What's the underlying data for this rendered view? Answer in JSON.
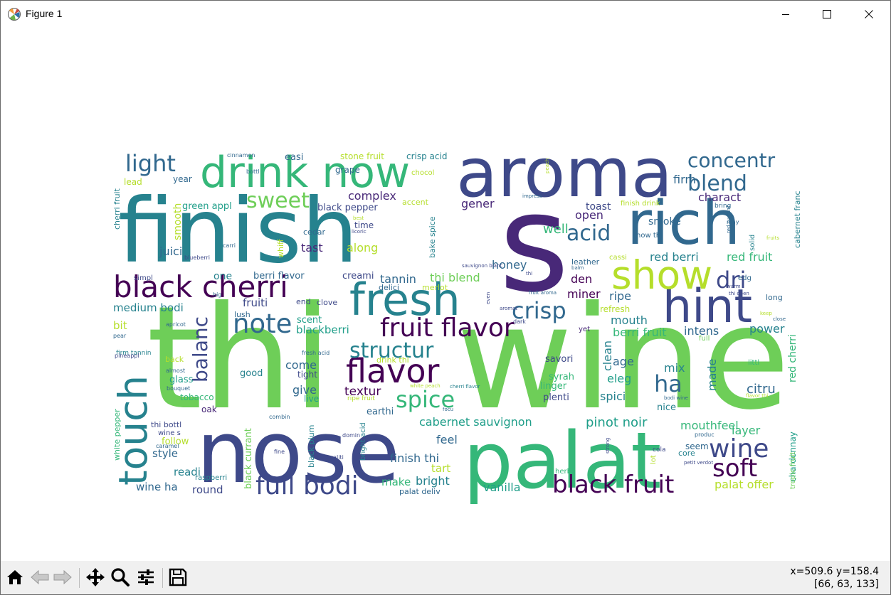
{
  "window": {
    "title": "Figure 1",
    "icons": {
      "app": "matplotlib-icon",
      "minimize": "minimize-icon",
      "maximize": "maximize-icon",
      "close": "close-icon"
    }
  },
  "toolbar": {
    "buttons": [
      {
        "name": "home-button",
        "icon": "home-icon"
      },
      {
        "name": "back-button",
        "icon": "back-arrow-icon"
      },
      {
        "name": "forward-button",
        "icon": "forward-arrow-icon"
      },
      {
        "name": "pan-button",
        "icon": "move-icon"
      },
      {
        "name": "zoom-button",
        "icon": "zoom-icon"
      },
      {
        "name": "subplots-button",
        "icon": "sliders-icon"
      },
      {
        "name": "save-button",
        "icon": "save-icon"
      }
    ],
    "coords_line1": "x=509.6 y=158.4",
    "coords_line2": "[66, 63, 133]"
  },
  "wordcloud": {
    "colors": [
      "#440154",
      "#482878",
      "#3e4989",
      "#31688e",
      "#26828e",
      "#1f9e89",
      "#35b779",
      "#6ece58",
      "#b5de2b",
      "#fde725"
    ],
    "words": [
      {
        "text": "thi",
        "color": "#6ece58"
      },
      {
        "text": "wine",
        "color": "#6ece58"
      },
      {
        "text": "s",
        "color": "#482878"
      },
      {
        "text": "finish",
        "color": "#26828e"
      },
      {
        "text": "aroma",
        "color": "#3e4989"
      },
      {
        "text": "nose",
        "color": "#3e4989"
      },
      {
        "text": "palat",
        "color": "#35b779"
      },
      {
        "text": "drink now",
        "color": "#35b779"
      },
      {
        "text": "rich",
        "color": "#31688e"
      },
      {
        "text": "fresh",
        "color": "#26828e"
      },
      {
        "text": "hint",
        "color": "#3e4989"
      },
      {
        "text": "show",
        "color": "#b5de2b"
      },
      {
        "text": "black cherri",
        "color": "#440154"
      },
      {
        "text": "touch",
        "color": "#26828e"
      },
      {
        "text": "flavor",
        "color": "#440154"
      },
      {
        "text": "fruit flavor",
        "color": "#440154"
      },
      {
        "text": "black fruit",
        "color": "#440154"
      },
      {
        "text": "note",
        "color": "#31688e"
      },
      {
        "text": "full bodi",
        "color": "#3e4989"
      },
      {
        "text": "structur",
        "color": "#26828e"
      },
      {
        "text": "spice",
        "color": "#35b779"
      },
      {
        "text": "wine",
        "color": "#3e4989"
      },
      {
        "text": "soft",
        "color": "#440154"
      },
      {
        "text": "crisp",
        "color": "#31688e"
      },
      {
        "text": "ha",
        "color": "#31688e"
      },
      {
        "text": "blend",
        "color": "#31688e"
      },
      {
        "text": "concentr",
        "color": "#31688e"
      },
      {
        "text": "light",
        "color": "#31688e"
      },
      {
        "text": "sweet",
        "color": "#6ece58"
      },
      {
        "text": "acid",
        "color": "#31688e"
      },
      {
        "text": "dri",
        "color": "#3e4989"
      },
      {
        "text": "balanc",
        "color": "#3e4989"
      },
      {
        "text": "cabernet sauvignon",
        "color": "#1f9e89"
      },
      {
        "text": "pinot noir",
        "color": "#1f9e89"
      },
      {
        "text": "mouthfeel",
        "color": "#35b779"
      },
      {
        "text": "layer",
        "color": "#35b779"
      },
      {
        "text": "tannin",
        "color": "#31688e"
      },
      {
        "text": "thi blend",
        "color": "#6ece58"
      },
      {
        "text": "well",
        "color": "#35b779"
      },
      {
        "text": "red berri",
        "color": "#26828e"
      },
      {
        "text": "red fruit",
        "color": "#35b779"
      },
      {
        "text": "berri fruit",
        "color": "#35b779"
      },
      {
        "text": "intens",
        "color": "#31688e"
      },
      {
        "text": "power",
        "color": "#26828e"
      },
      {
        "text": "citru",
        "color": "#31688e"
      },
      {
        "text": "finish thi",
        "color": "#31688e"
      },
      {
        "text": "bright",
        "color": "#26828e"
      },
      {
        "text": "vanilla",
        "color": "#1f9e89"
      },
      {
        "text": "palat offer",
        "color": "#b5de2b"
      },
      {
        "text": "make",
        "color": "#35b779"
      },
      {
        "text": "tart",
        "color": "#b5de2b"
      },
      {
        "text": "feel",
        "color": "#31688e"
      },
      {
        "text": "give",
        "color": "#31688e"
      },
      {
        "text": "textur",
        "color": "#440154"
      },
      {
        "text": "come",
        "color": "#31688e"
      },
      {
        "text": "mix",
        "color": "#26828e"
      },
      {
        "text": "age",
        "color": "#31688e"
      },
      {
        "text": "eleg",
        "color": "#1f9e89"
      },
      {
        "text": "spici",
        "color": "#26828e"
      },
      {
        "text": "made",
        "color": "#26828e"
      },
      {
        "text": "clean",
        "color": "#26828e"
      },
      {
        "text": "mouth",
        "color": "#26828e"
      },
      {
        "text": "ripe",
        "color": "#31688e"
      },
      {
        "text": "miner",
        "color": "#440154"
      },
      {
        "text": "den",
        "color": "#440154"
      },
      {
        "text": "honey",
        "color": "#31688e"
      },
      {
        "text": "open",
        "color": "#482878"
      },
      {
        "text": "charact",
        "color": "#482878"
      },
      {
        "text": "firm",
        "color": "#31688e"
      },
      {
        "text": "toast",
        "color": "#3e4989"
      },
      {
        "text": "smoke",
        "color": "#31688e"
      },
      {
        "text": "gener",
        "color": "#482878"
      },
      {
        "text": "complex",
        "color": "#482878"
      },
      {
        "text": "tast",
        "color": "#482878"
      },
      {
        "text": "along",
        "color": "#b5de2b"
      },
      {
        "text": "juici",
        "color": "#31688e"
      },
      {
        "text": "smooth",
        "color": "#b5de2b"
      },
      {
        "text": "medium bodi",
        "color": "#26828e"
      },
      {
        "text": "fruiti",
        "color": "#3e4989"
      },
      {
        "text": "bit",
        "color": "#b5de2b"
      },
      {
        "text": "one",
        "color": "#26828e"
      },
      {
        "text": "berri flavor",
        "color": "#31688e"
      },
      {
        "text": "creami",
        "color": "#3e4989"
      },
      {
        "text": "blackberri",
        "color": "#1f9e89"
      },
      {
        "text": "scent",
        "color": "#1f9e89"
      },
      {
        "text": "green appl",
        "color": "#1f9e89"
      },
      {
        "text": "black pepper",
        "color": "#3e4989"
      },
      {
        "text": "stone fruit",
        "color": "#b5de2b"
      },
      {
        "text": "crisp acid",
        "color": "#26828e"
      },
      {
        "text": "easi",
        "color": "#31688e"
      },
      {
        "text": "grape",
        "color": "#31688e"
      },
      {
        "text": "year",
        "color": "#31688e"
      },
      {
        "text": "lead",
        "color": "#b5de2b"
      },
      {
        "text": "style",
        "color": "#31688e"
      },
      {
        "text": "readi",
        "color": "#26828e"
      },
      {
        "text": "wine ha",
        "color": "#31688e"
      },
      {
        "text": "round",
        "color": "#3e4989"
      },
      {
        "text": "follow",
        "color": "#b5de2b"
      },
      {
        "text": "glass",
        "color": "#1f9e89"
      },
      {
        "text": "tobacco",
        "color": "#35b779"
      },
      {
        "text": "oak",
        "color": "#482878"
      },
      {
        "text": "good",
        "color": "#26828e"
      },
      {
        "text": "tight",
        "color": "#3e4989"
      },
      {
        "text": "live",
        "color": "#1f9e89"
      },
      {
        "text": "earthi",
        "color": "#31688e"
      },
      {
        "text": "savori",
        "color": "#3e4989"
      },
      {
        "text": "syrah",
        "color": "#35b779"
      },
      {
        "text": "linger",
        "color": "#35b779"
      },
      {
        "text": "plenti",
        "color": "#3e4989"
      },
      {
        "text": "nice",
        "color": "#26828e"
      },
      {
        "text": "seem",
        "color": "#31688e"
      },
      {
        "text": "core",
        "color": "#26828e"
      },
      {
        "text": "chardonnay",
        "color": "#1f9e89"
      },
      {
        "text": "red cherri",
        "color": "#35b779"
      },
      {
        "text": "cabernet franc",
        "color": "#26828e"
      },
      {
        "text": "tropic fruit",
        "color": "#6ece58"
      },
      {
        "text": "refresh",
        "color": "#b5de2b"
      },
      {
        "text": "black currant",
        "color": "#6ece58"
      },
      {
        "text": "cherri fruit",
        "color": "#26828e"
      },
      {
        "text": "white pepper",
        "color": "#35b779"
      },
      {
        "text": "suggest",
        "color": "#26828e"
      },
      {
        "text": "whiff",
        "color": "#b5de2b"
      },
      {
        "text": "cedar",
        "color": "#31688e"
      },
      {
        "text": "bake spice",
        "color": "#26828e"
      },
      {
        "text": "black plum",
        "color": "#26828e"
      },
      {
        "text": "bright acid",
        "color": "#26828e"
      },
      {
        "text": "lush",
        "color": "#31688e"
      },
      {
        "text": "end",
        "color": "#3e4989"
      },
      {
        "text": "clove",
        "color": "#3e4989"
      },
      {
        "text": "delici",
        "color": "#31688e"
      },
      {
        "text": "merlot",
        "color": "#b5de2b"
      },
      {
        "text": "lift",
        "color": "#6ece58"
      },
      {
        "text": "accent",
        "color": "#b5de2b"
      },
      {
        "text": "drink thi",
        "color": "#b5de2b"
      },
      {
        "text": "time",
        "color": "#3e4989"
      },
      {
        "text": "firm tannin",
        "color": "#26828e"
      },
      {
        "text": "simpl",
        "color": "#3e4989"
      },
      {
        "text": "back",
        "color": "#b5de2b"
      },
      {
        "text": "raspberri",
        "color": "#26828e"
      },
      {
        "text": "thi bottl",
        "color": "#3e4989"
      },
      {
        "text": "wine s",
        "color": "#3e4989"
      },
      {
        "text": "leather",
        "color": "#31688e"
      },
      {
        "text": "cassi",
        "color": "#b5de2b"
      },
      {
        "text": "finish drink",
        "color": "#b5de2b"
      },
      {
        "text": "now thi",
        "color": "#31688e"
      },
      {
        "text": "full",
        "color": "#6ece58"
      },
      {
        "text": "long",
        "color": "#31688e"
      },
      {
        "text": "edg",
        "color": "#31688e"
      },
      {
        "text": "chocol",
        "color": "#b5de2b"
      },
      {
        "text": "yet",
        "color": "#482878"
      },
      {
        "text": "herb",
        "color": "#35b779"
      },
      {
        "text": "littl",
        "color": "#35b779"
      },
      {
        "text": "solid",
        "color": "#26828e"
      },
      {
        "text": "lot",
        "color": "#b5de2b"
      },
      {
        "text": "cola",
        "color": "#3e4989"
      },
      {
        "text": "bring",
        "color": "#31688e"
      },
      {
        "text": "may",
        "color": "#31688e"
      },
      {
        "text": "cinnamon",
        "color": "#31688e"
      },
      {
        "text": "bottl",
        "color": "#31688e"
      },
      {
        "text": "carri",
        "color": "#31688e"
      },
      {
        "text": "blueberri",
        "color": "#3e4989"
      },
      {
        "text": "pineappl",
        "color": "#3e4989"
      },
      {
        "text": "almost",
        "color": "#31688e"
      },
      {
        "text": "bouquet",
        "color": "#31688e"
      },
      {
        "text": "apricot",
        "color": "#31688e"
      },
      {
        "text": "pear",
        "color": "#31688e"
      },
      {
        "text": "big",
        "color": "#31688e"
      },
      {
        "text": "fresh acid",
        "color": "#31688e"
      },
      {
        "text": "caramel",
        "color": "#31688e"
      },
      {
        "text": "combin",
        "color": "#31688e"
      },
      {
        "text": "fine",
        "color": "#3e4989"
      },
      {
        "text": "qualiti",
        "color": "#3e4989"
      },
      {
        "text": "domin",
        "color": "#3e4989"
      },
      {
        "text": "licoric",
        "color": "#3e4989"
      },
      {
        "text": "best",
        "color": "#b5de2b"
      },
      {
        "text": "impress",
        "color": "#31688e"
      },
      {
        "text": "peach",
        "color": "#b5de2b"
      },
      {
        "text": "white peach",
        "color": "#b5de2b"
      },
      {
        "text": "ripe fruit",
        "color": "#b5de2b"
      },
      {
        "text": "focu",
        "color": "#31688e"
      },
      {
        "text": "palat deliv",
        "color": "#31688e"
      },
      {
        "text": "cherri flavor",
        "color": "#26828e"
      },
      {
        "text": "even",
        "color": "#3e4989"
      },
      {
        "text": "aromat",
        "color": "#3e4989"
      },
      {
        "text": "dark",
        "color": "#3e4989"
      },
      {
        "text": "sauvignon blanc",
        "color": "#3e4989"
      },
      {
        "text": "thi",
        "color": "#3e4989"
      },
      {
        "text": "balm",
        "color": "#31688e"
      },
      {
        "text": "fruit aroma",
        "color": "#31688e"
      },
      {
        "text": "warm",
        "color": "#3e4989"
      },
      {
        "text": "thi open",
        "color": "#3e4989"
      },
      {
        "text": "red currant",
        "color": "#31688e"
      },
      {
        "text": "fruits",
        "color": "#b5de2b"
      },
      {
        "text": "close",
        "color": "#31688e"
      },
      {
        "text": "keep",
        "color": "#b5de2b"
      },
      {
        "text": "flavor thi",
        "color": "#b5de2b"
      },
      {
        "text": "bodi wine",
        "color": "#31688e"
      },
      {
        "text": "produc",
        "color": "#31688e"
      },
      {
        "text": "petit verdot",
        "color": "#3e4989"
      },
      {
        "text": "strong",
        "color": "#3e4989"
      },
      {
        "text": "lean",
        "color": "#31688e"
      }
    ]
  }
}
